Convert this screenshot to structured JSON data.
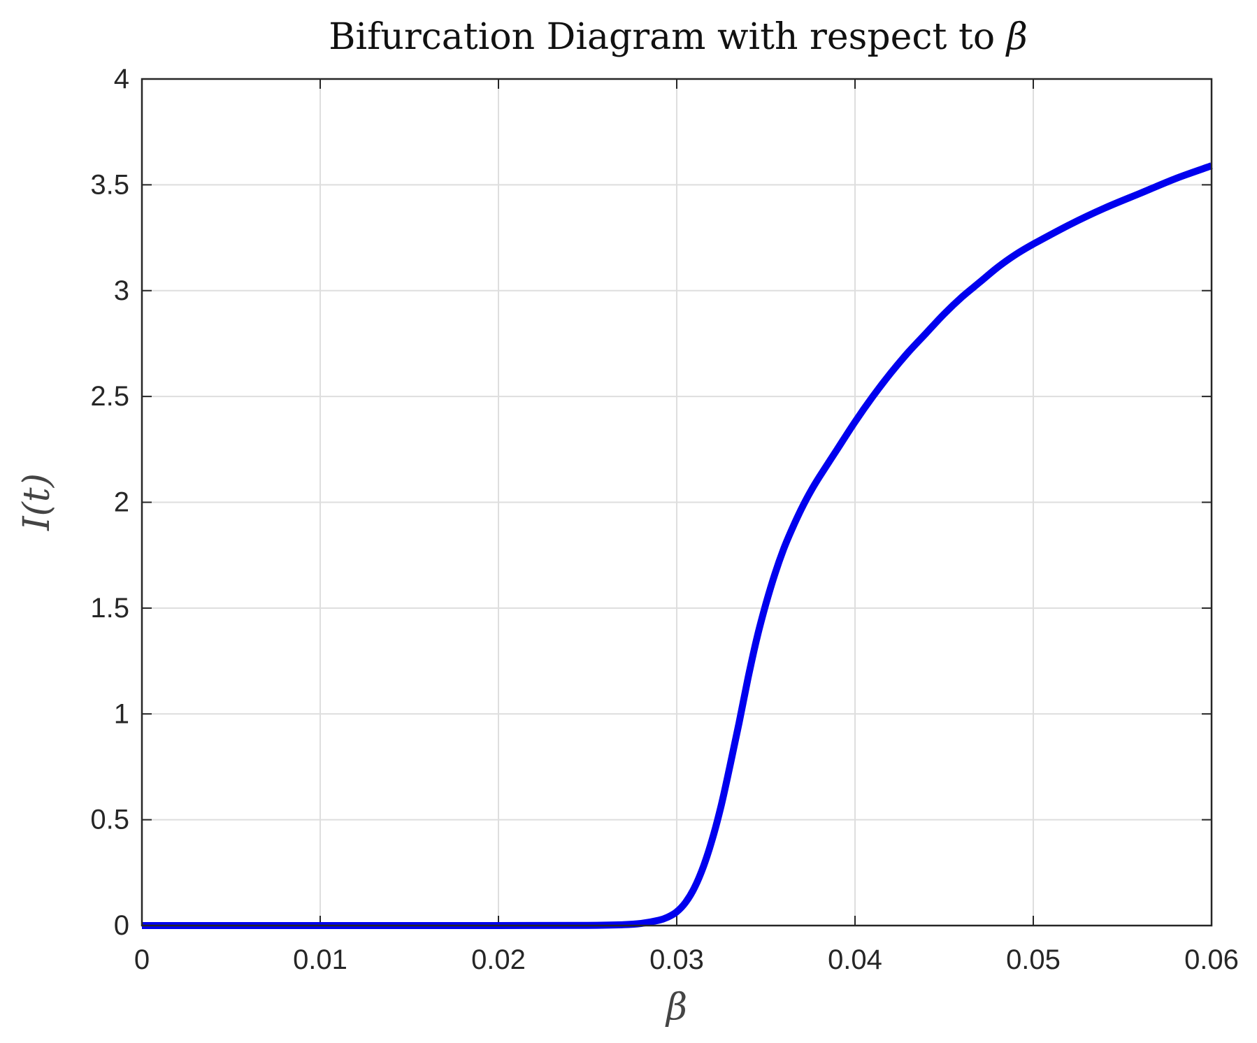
{
  "chart_data": {
    "type": "line",
    "title_prefix": "Bifurcation Diagram with respect to ",
    "title_symbol": "β",
    "xlabel": "β",
    "ylabel": "I(t)",
    "xlim": [
      0,
      0.06
    ],
    "ylim": [
      0,
      4
    ],
    "xticks": [
      0,
      0.01,
      0.02,
      0.03,
      0.04,
      0.05,
      0.06
    ],
    "xtick_labels": [
      "0",
      "0.01",
      "0.02",
      "0.03",
      "0.04",
      "0.05",
      "0.06"
    ],
    "yticks": [
      0,
      0.5,
      1,
      1.5,
      2,
      2.5,
      3,
      3.5,
      4
    ],
    "ytick_labels": [
      "0",
      "0.5",
      "1",
      "1.5",
      "2",
      "2.5",
      "3",
      "3.5",
      "4"
    ],
    "grid": true,
    "legend": "none",
    "series": [
      {
        "color": "#0000ee",
        "x": [
          0,
          0.005,
          0.01,
          0.015,
          0.02,
          0.025,
          0.027,
          0.028,
          0.029,
          0.0295,
          0.03,
          0.0305,
          0.031,
          0.0315,
          0.032,
          0.0325,
          0.033,
          0.0335,
          0.034,
          0.0345,
          0.035,
          0.0355,
          0.036,
          0.0365,
          0.037,
          0.0375,
          0.038,
          0.039,
          0.04,
          0.041,
          0.042,
          0.043,
          0.044,
          0.045,
          0.046,
          0.047,
          0.048,
          0.049,
          0.05,
          0.052,
          0.054,
          0.056,
          0.058,
          0.06
        ],
        "y": [
          0,
          0,
          0,
          0,
          0,
          0.001,
          0.004,
          0.01,
          0.025,
          0.04,
          0.065,
          0.11,
          0.18,
          0.28,
          0.41,
          0.57,
          0.76,
          0.96,
          1.17,
          1.36,
          1.52,
          1.66,
          1.78,
          1.88,
          1.97,
          2.05,
          2.12,
          2.25,
          2.38,
          2.5,
          2.61,
          2.71,
          2.8,
          2.89,
          2.97,
          3.04,
          3.11,
          3.17,
          3.22,
          3.31,
          3.39,
          3.46,
          3.53,
          3.59
        ]
      }
    ]
  }
}
